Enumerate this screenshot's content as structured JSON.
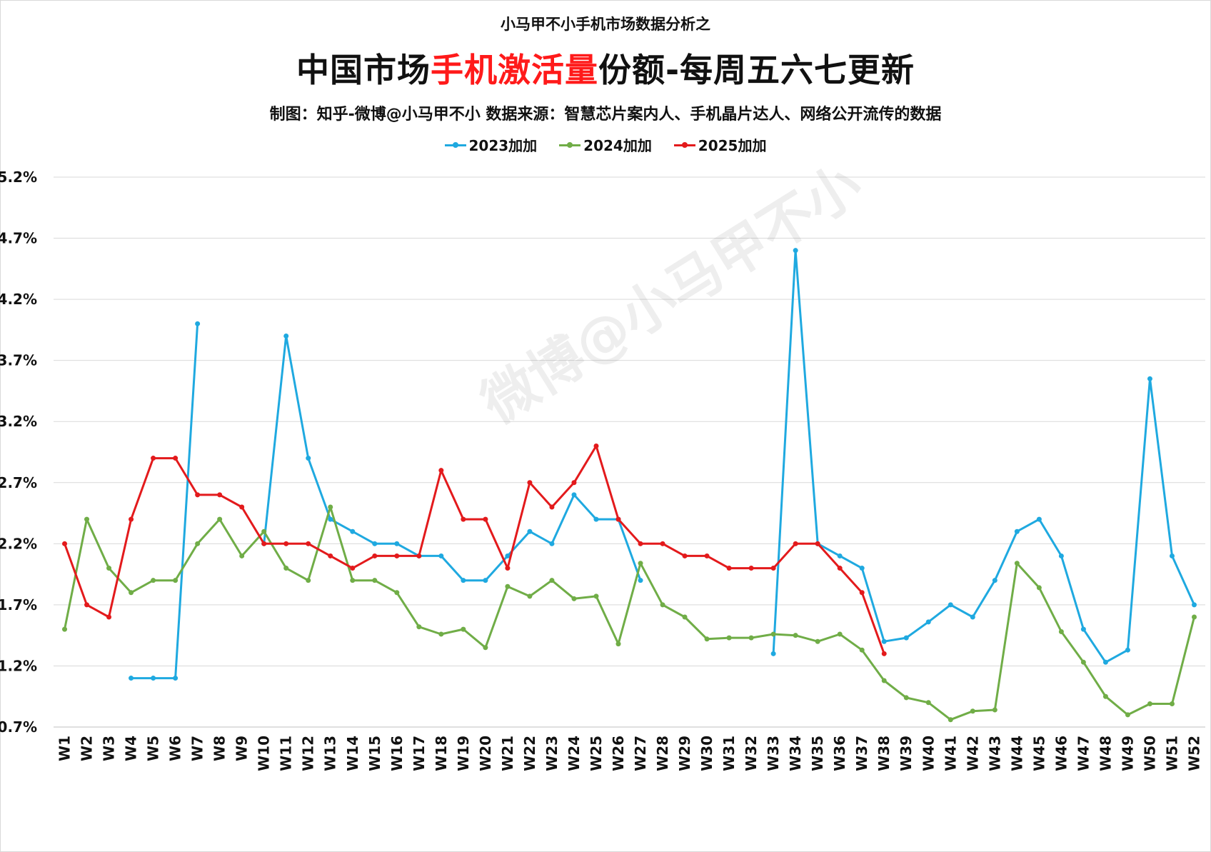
{
  "header": {
    "supertitle": "小马甲不小手机市场数据分析之",
    "title_prefix": "中国市场",
    "title_highlight": "手机激活量",
    "title_suffix": "份额-每周五六七更新",
    "subtitle": "制图：知乎-微博@小马甲不小   数据来源：智慧芯片案内人、手机晶片达人、网络公开流传的数据"
  },
  "watermark": "微博@小马甲不小",
  "colors": {
    "highlight": "#ff1a1a",
    "s2023": "#1fa9e0",
    "s2024": "#70ad47",
    "s2025": "#e31a1c",
    "grid": "#d9d9d9"
  },
  "chart_data": {
    "type": "line",
    "title": "中国市场手机激活量份额-每周五六七更新",
    "xlabel": "",
    "ylabel": "",
    "ylim": [
      0.7,
      5.2
    ],
    "yticks": [
      0.7,
      1.2,
      1.7,
      2.2,
      2.7,
      3.2,
      3.7,
      4.2,
      4.7,
      5.2
    ],
    "ytick_labels": [
      "0.7%",
      "1.2%",
      "1.7%",
      "2.2%",
      "2.7%",
      "3.2%",
      "3.7%",
      "4.2%",
      "4.7%",
      "5.2%"
    ],
    "grid": true,
    "legend_position": "top-center",
    "categories": [
      "W1",
      "W2",
      "W3",
      "W4",
      "W5",
      "W6",
      "W7",
      "W8",
      "W9",
      "W10",
      "W11",
      "W12",
      "W13",
      "W14",
      "W15",
      "W16",
      "W17",
      "W18",
      "W19",
      "W20",
      "W21",
      "W22",
      "W23",
      "W24",
      "W25",
      "W26",
      "W27",
      "W28",
      "W29",
      "W30",
      "W31",
      "W32",
      "W33",
      "W34",
      "W35",
      "W36",
      "W37",
      "W38",
      "W39",
      "W40",
      "W41",
      "W42",
      "W43",
      "W44",
      "W45",
      "W46",
      "W47",
      "W48",
      "W49",
      "W50",
      "W51",
      "W52"
    ],
    "series": [
      {
        "name": "2023加加",
        "color": "#1fa9e0",
        "values": [
          null,
          null,
          null,
          1.1,
          1.1,
          1.1,
          4.0,
          null,
          null,
          2.2,
          3.9,
          2.9,
          2.4,
          2.3,
          2.2,
          2.2,
          2.1,
          2.1,
          1.9,
          1.9,
          2.1,
          2.3,
          2.2,
          2.6,
          2.4,
          2.4,
          1.9,
          null,
          null,
          null,
          null,
          null,
          1.3,
          4.6,
          2.2,
          2.1,
          2.0,
          1.4,
          1.43,
          1.56,
          1.7,
          1.6,
          1.9,
          2.3,
          2.4,
          2.1,
          1.5,
          1.23,
          1.33,
          3.55,
          2.1,
          1.7
        ]
      },
      {
        "name": "2024加加",
        "color": "#70ad47",
        "values": [
          1.5,
          2.4,
          2.0,
          1.8,
          1.9,
          1.9,
          2.2,
          2.4,
          2.1,
          2.3,
          2.0,
          1.9,
          2.5,
          1.9,
          1.9,
          1.8,
          1.52,
          1.46,
          1.5,
          1.35,
          1.85,
          1.77,
          1.9,
          1.75,
          1.77,
          1.38,
          2.04,
          1.7,
          1.6,
          1.42,
          1.43,
          1.43,
          1.46,
          1.45,
          1.4,
          1.46,
          1.33,
          1.08,
          0.94,
          0.9,
          0.76,
          0.83,
          0.84,
          2.04,
          1.84,
          1.48,
          1.23,
          0.95,
          0.8,
          0.89,
          0.89,
          1.6
        ]
      },
      {
        "name": "2025加加",
        "color": "#e31a1c",
        "values": [
          2.2,
          1.7,
          1.6,
          2.4,
          2.9,
          2.9,
          2.6,
          2.6,
          2.5,
          2.2,
          2.2,
          2.2,
          2.1,
          2.0,
          2.1,
          2.1,
          2.1,
          2.8,
          2.4,
          2.4,
          2.0,
          2.7,
          2.5,
          2.7,
          3.0,
          2.4,
          2.2,
          2.2,
          2.1,
          2.1,
          2.0,
          2.0,
          2.0,
          2.2,
          2.2,
          2.0,
          1.8,
          1.3,
          null,
          null,
          null,
          null,
          null,
          null,
          null,
          null,
          null,
          null,
          null,
          null,
          null,
          null
        ]
      }
    ]
  }
}
